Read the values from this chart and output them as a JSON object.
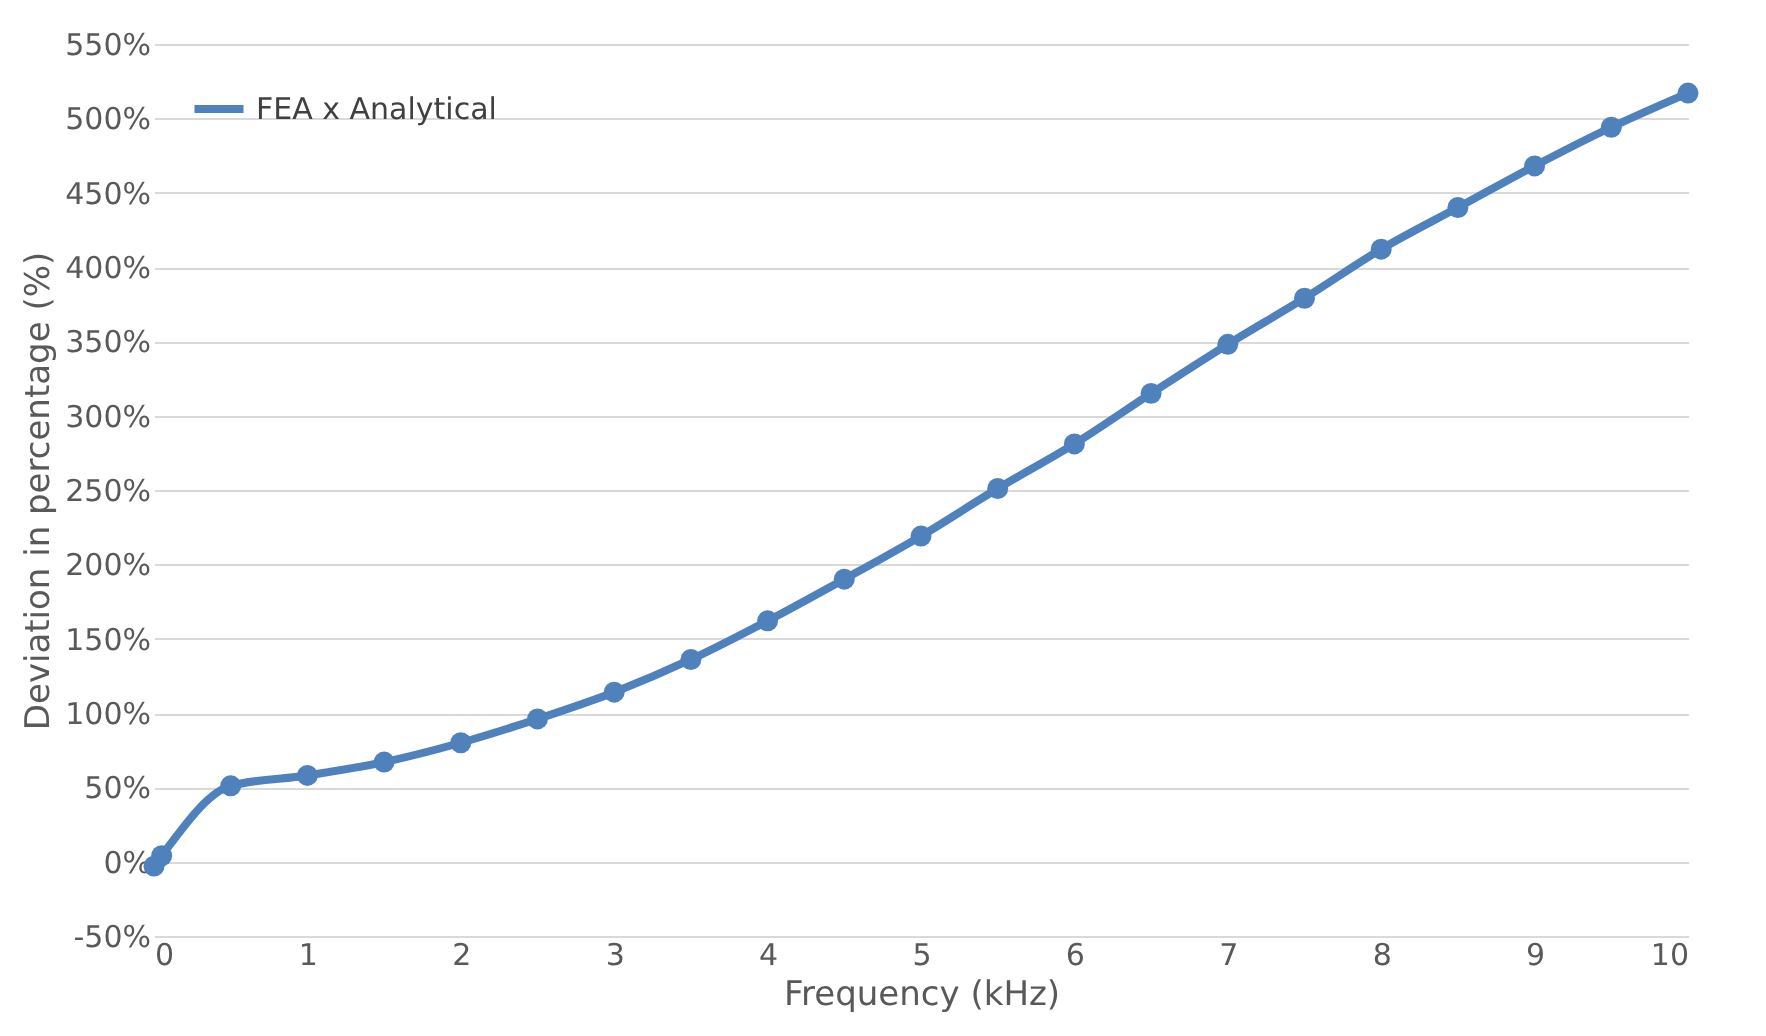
{
  "chart_data": {
    "type": "line",
    "xlabel": "Frequency (kHz)",
    "ylabel": "Deviation in percentage (%)",
    "x": [
      0,
      0.05,
      0.5,
      1,
      1.5,
      2,
      2.5,
      3,
      3.5,
      4,
      4.5,
      5,
      5.5,
      6,
      6.5,
      7,
      7.5,
      8,
      8.5,
      9,
      9.5,
      10
    ],
    "series": [
      {
        "name": "FEA x Analytical",
        "color": "#4f81bd",
        "values": [
          -3,
          4,
          51,
          58,
          67,
          80,
          96,
          114,
          136,
          162,
          190,
          219,
          251,
          281,
          315,
          348,
          379,
          412,
          440,
          468,
          494,
          517
        ]
      }
    ],
    "xlim": [
      0,
      10
    ],
    "xticks": [
      0,
      1,
      2,
      3,
      4,
      5,
      6,
      7,
      8,
      9,
      10
    ],
    "ylim": [
      -50,
      550
    ],
    "yticks": [
      {
        "value": -50,
        "label": "-50%"
      },
      {
        "value": 0,
        "label": "0%"
      },
      {
        "value": 50,
        "label": "50%"
      },
      {
        "value": 100,
        "label": "100%"
      },
      {
        "value": 150,
        "label": "150%"
      },
      {
        "value": 200,
        "label": "200%"
      },
      {
        "value": 250,
        "label": "250%"
      },
      {
        "value": 300,
        "label": "300%"
      },
      {
        "value": 350,
        "label": "350%"
      },
      {
        "value": 400,
        "label": "400%"
      },
      {
        "value": 450,
        "label": "450%"
      },
      {
        "value": 500,
        "label": "500%"
      },
      {
        "value": 550,
        "label": "550%"
      }
    ],
    "grid": "y",
    "legend": "top left",
    "marker": "circle",
    "line_style": "solid"
  }
}
